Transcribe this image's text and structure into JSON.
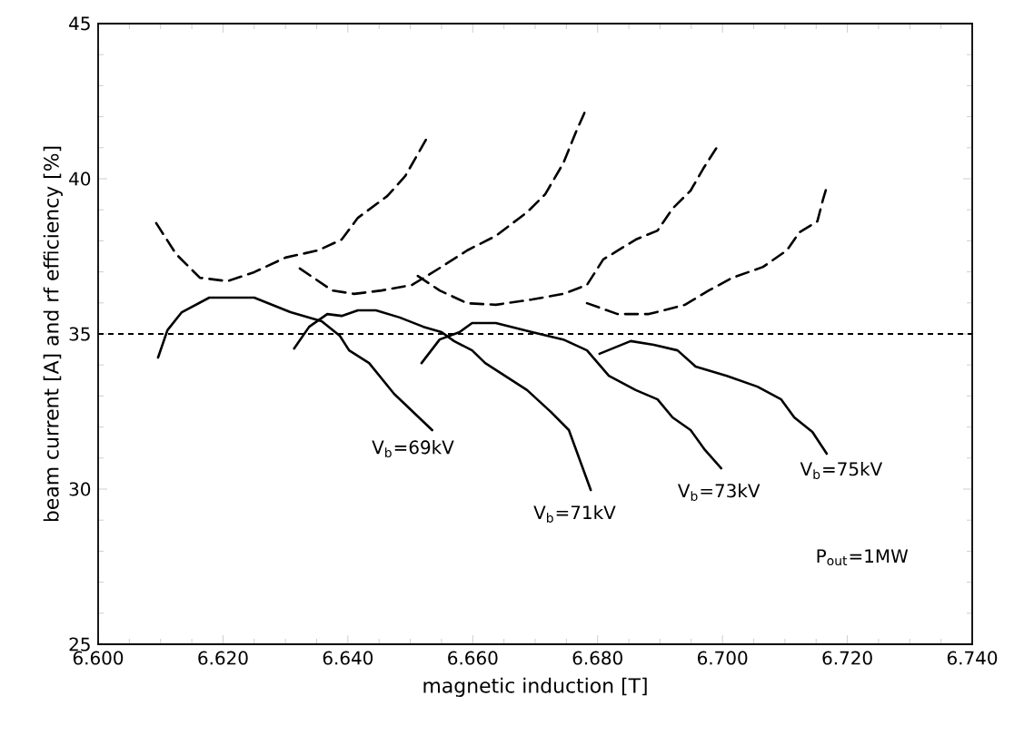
{
  "chart_data": {
    "type": "line",
    "xlabel": "magnetic induction [T]",
    "ylabel": "beam current [A] and rf efficiency [%]",
    "xlim": [
      6.6,
      6.74
    ],
    "ylim": [
      25,
      45
    ],
    "xticks": [
      {
        "value": 6.6,
        "label": "6.600"
      },
      {
        "value": 6.62,
        "label": "6.620"
      },
      {
        "value": 6.64,
        "label": "6.640"
      },
      {
        "value": 6.66,
        "label": "6.660"
      },
      {
        "value": 6.68,
        "label": "6.680"
      },
      {
        "value": 6.7,
        "label": "6.700"
      },
      {
        "value": 6.72,
        "label": "6.720"
      },
      {
        "value": 6.74,
        "label": "6.740"
      }
    ],
    "yticks": [
      25,
      30,
      35,
      40,
      45
    ],
    "grid": false,
    "marker": "none",
    "series": [
      {
        "color": "#000000",
        "line_style": "dashed",
        "x": [
          6.6093,
          6.6125,
          6.6163,
          6.6207,
          6.625,
          6.63,
          6.6352,
          6.639,
          6.6416,
          6.6463,
          6.6492,
          6.653
        ],
        "values": [
          38.57,
          37.57,
          36.81,
          36.7,
          36.99,
          37.46,
          37.69,
          38.04,
          38.74,
          39.44,
          40.09,
          41.43
        ]
      },
      {
        "color": "#000000",
        "line_style": "solid",
        "x": [
          6.6096,
          6.6111,
          6.6134,
          6.6178,
          6.625,
          6.6308,
          6.6358,
          6.6387,
          6.6402,
          6.6434,
          6.6474,
          6.6535
        ],
        "values": [
          34.24,
          35.12,
          35.7,
          36.17,
          36.17,
          35.7,
          35.41,
          34.94,
          34.47,
          34.06,
          33.07,
          31.9
        ]
      },
      {
        "color": "#000000",
        "line_style": "dashed",
        "x": [
          6.6323,
          6.6375,
          6.641,
          6.6454,
          6.6503,
          6.655,
          6.6591,
          6.6637,
          6.6687,
          6.6716,
          6.6745,
          6.6765,
          6.6783
        ],
        "values": [
          37.11,
          36.4,
          36.29,
          36.4,
          36.58,
          37.16,
          37.69,
          38.16,
          38.92,
          39.5,
          40.5,
          41.49,
          42.31
        ]
      },
      {
        "color": "#000000",
        "line_style": "solid",
        "x": [
          6.6314,
          6.6338,
          6.6367,
          6.639,
          6.6416,
          6.6445,
          6.6483,
          6.6521,
          6.655,
          6.657,
          6.6599,
          6.662,
          6.6687,
          6.6725,
          6.6754,
          6.6789
        ],
        "values": [
          34.53,
          35.23,
          35.64,
          35.58,
          35.76,
          35.76,
          35.53,
          35.23,
          35.06,
          34.77,
          34.47,
          34.06,
          33.19,
          32.49,
          31.9,
          29.97
        ]
      },
      {
        "color": "#000000",
        "line_style": "dashed",
        "x": [
          6.6512,
          6.6547,
          6.6591,
          6.6637,
          6.6695,
          6.6745,
          6.6783,
          6.6809,
          6.6861,
          6.6896,
          6.692,
          6.6949,
          6.6969,
          6.6995
        ],
        "values": [
          36.87,
          36.4,
          35.99,
          35.94,
          36.11,
          36.29,
          36.58,
          37.4,
          38.04,
          38.33,
          39.04,
          39.62,
          40.32,
          41.14
        ]
      },
      {
        "color": "#000000",
        "line_style": "solid",
        "x": [
          6.6518,
          6.6547,
          6.6579,
          6.6599,
          6.6637,
          6.6695,
          6.6745,
          6.6783,
          6.6818,
          6.6861,
          6.6896,
          6.692,
          6.6949,
          6.6972,
          6.6998
        ],
        "values": [
          34.06,
          34.82,
          35.06,
          35.35,
          35.35,
          35.06,
          34.82,
          34.47,
          33.65,
          33.19,
          32.89,
          32.31,
          31.9,
          31.26,
          30.67
        ]
      },
      {
        "color": "#000000",
        "line_style": "dashed",
        "x": [
          6.6783,
          6.6832,
          6.6882,
          6.694,
          6.6978,
          6.7016,
          6.7065,
          6.7103,
          6.7123,
          6.7152,
          6.7161,
          6.7167
        ],
        "values": [
          35.99,
          35.64,
          35.64,
          35.94,
          36.4,
          36.81,
          37.16,
          37.69,
          38.27,
          38.63,
          39.33,
          39.74
        ]
      },
      {
        "color": "#000000",
        "line_style": "solid",
        "x": [
          6.6803,
          6.6853,
          6.689,
          6.6928,
          6.6957,
          6.7007,
          6.7056,
          6.7094,
          6.7115,
          6.7144,
          6.7167
        ],
        "values": [
          34.36,
          34.77,
          34.65,
          34.47,
          33.95,
          33.65,
          33.3,
          32.89,
          32.31,
          31.84,
          31.14
        ]
      }
    ],
    "ref_lines": [
      {
        "axis": "y",
        "value": 35,
        "line_style": "dashed",
        "color": "#000000"
      }
    ],
    "annotations": [
      "V$_{b}$=69kV",
      "V$_{b}$=71kV",
      "V$_{b}$=73kV",
      "V$_{b}$=75kV",
      "P$_{out}$=1MW"
    ]
  }
}
